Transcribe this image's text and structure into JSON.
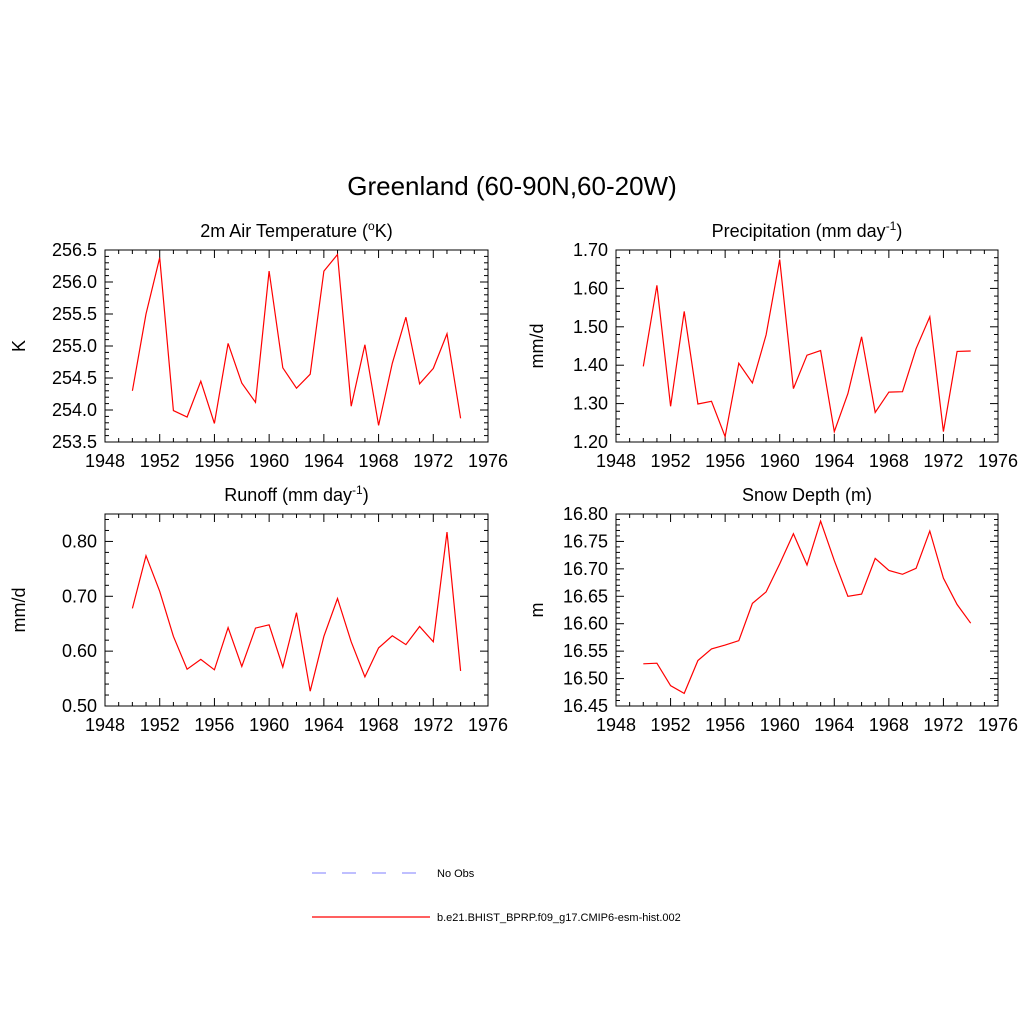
{
  "title": "Greenland (60-90N,60-20W)",
  "series_color": "#ff0000",
  "obs_color": "#9999ff",
  "chart_data": [
    {
      "type": "line",
      "title": "2m Air Temperature (",
      "title_sup": "o",
      "title_end": "K)",
      "ylabel": "K",
      "xlim": [
        1948,
        1976
      ],
      "ylim": [
        253.5,
        256.5
      ],
      "xticks": [
        1948,
        1952,
        1956,
        1960,
        1964,
        1968,
        1972,
        1976
      ],
      "yticks": [
        253.5,
        254.0,
        254.5,
        255.0,
        255.5,
        256.0,
        256.5
      ],
      "ytick_labels": [
        "253.5",
        "254.0",
        "254.5",
        "255.0",
        "255.5",
        "256.0",
        "256.5"
      ],
      "y_minor": 0.1,
      "x": [
        1950,
        1951,
        1952,
        1953,
        1954,
        1955,
        1956,
        1957,
        1958,
        1959,
        1960,
        1961,
        1962,
        1963,
        1964,
        1965,
        1966,
        1967,
        1968,
        1969,
        1970,
        1971,
        1972,
        1973,
        1974
      ],
      "values": [
        254.3,
        255.5,
        256.38,
        253.99,
        253.89,
        254.45,
        253.79,
        255.04,
        254.42,
        254.12,
        256.17,
        254.66,
        254.34,
        254.56,
        256.17,
        256.43,
        254.06,
        255.02,
        253.76,
        254.73,
        255.45,
        254.41,
        254.65,
        255.19,
        253.87
      ]
    },
    {
      "type": "line",
      "title": "Precipitation (mm day",
      "title_sup": "-1",
      "title_end": ")",
      "ylabel": "mm/d",
      "xlim": [
        1948,
        1976
      ],
      "ylim": [
        1.2,
        1.7
      ],
      "xticks": [
        1948,
        1952,
        1956,
        1960,
        1964,
        1968,
        1972,
        1976
      ],
      "yticks": [
        1.2,
        1.3,
        1.4,
        1.5,
        1.6,
        1.7
      ],
      "ytick_labels": [
        "1.20",
        "1.30",
        "1.40",
        "1.50",
        "1.60",
        "1.70"
      ],
      "y_minor": 0.02,
      "x": [
        1950,
        1951,
        1952,
        1953,
        1954,
        1955,
        1956,
        1957,
        1958,
        1959,
        1960,
        1961,
        1962,
        1963,
        1964,
        1965,
        1966,
        1967,
        1968,
        1969,
        1970,
        1971,
        1972,
        1973,
        1974
      ],
      "values": [
        1.397,
        1.608,
        1.293,
        1.54,
        1.299,
        1.306,
        1.214,
        1.405,
        1.354,
        1.479,
        1.675,
        1.339,
        1.426,
        1.438,
        1.227,
        1.326,
        1.474,
        1.277,
        1.33,
        1.331,
        1.443,
        1.526,
        1.227,
        1.436,
        1.437
      ]
    },
    {
      "type": "line",
      "title": "Runoff (mm day",
      "title_sup": "-1",
      "title_end": ")",
      "ylabel": "mm/d",
      "xlim": [
        1948,
        1976
      ],
      "ylim": [
        0.5,
        0.85
      ],
      "xticks": [
        1948,
        1952,
        1956,
        1960,
        1964,
        1968,
        1972,
        1976
      ],
      "yticks": [
        0.5,
        0.6,
        0.7,
        0.8
      ],
      "ytick_labels": [
        "0.50",
        "0.60",
        "0.70",
        "0.80"
      ],
      "y_minor": 0.02,
      "x": [
        1950,
        1951,
        1952,
        1953,
        1954,
        1955,
        1956,
        1957,
        1958,
        1959,
        1960,
        1961,
        1962,
        1963,
        1964,
        1965,
        1966,
        1967,
        1968,
        1969,
        1970,
        1971,
        1972,
        1973,
        1974
      ],
      "values": [
        0.678,
        0.774,
        0.709,
        0.627,
        0.567,
        0.585,
        0.566,
        0.643,
        0.572,
        0.642,
        0.648,
        0.571,
        0.67,
        0.527,
        0.627,
        0.696,
        0.617,
        0.553,
        0.606,
        0.628,
        0.612,
        0.645,
        0.617,
        0.817,
        0.564
      ]
    },
    {
      "type": "line",
      "title": "Snow Depth (m)",
      "title_sup": "",
      "title_end": "",
      "ylabel": "m",
      "xlim": [
        1948,
        1976
      ],
      "ylim": [
        16.45,
        16.8
      ],
      "xticks": [
        1948,
        1952,
        1956,
        1960,
        1964,
        1968,
        1972,
        1976
      ],
      "yticks": [
        16.45,
        16.5,
        16.55,
        16.6,
        16.65,
        16.7,
        16.75,
        16.8
      ],
      "ytick_labels": [
        "16.45",
        "16.50",
        "16.55",
        "16.60",
        "16.65",
        "16.70",
        "16.75",
        "16.80"
      ],
      "y_minor": 0.01,
      "x": [
        1950,
        1951,
        1952,
        1953,
        1954,
        1955,
        1956,
        1957,
        1958,
        1959,
        1960,
        1961,
        1962,
        1963,
        1964,
        1965,
        1966,
        1967,
        1968,
        1969,
        1970,
        1971,
        1972,
        1973,
        1974
      ],
      "values": [
        16.527,
        16.528,
        16.487,
        16.473,
        16.533,
        16.554,
        16.561,
        16.569,
        16.637,
        16.658,
        16.709,
        16.764,
        16.707,
        16.787,
        16.715,
        16.65,
        16.654,
        16.719,
        16.697,
        16.69,
        16.701,
        16.769,
        16.683,
        16.635,
        16.601
      ]
    }
  ],
  "legend": [
    {
      "label": "No Obs",
      "style": "dashed"
    },
    {
      "label": "b.e21.BHIST_BPRP.f09_g17.CMIP6-esm-hist.002",
      "style": "solid"
    }
  ]
}
